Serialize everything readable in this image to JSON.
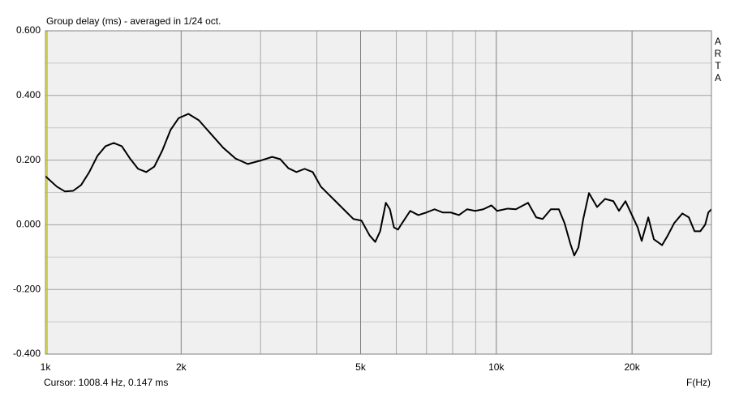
{
  "chart_data": {
    "type": "line",
    "title": "Group delay (ms) - averaged in 1/24 oct.",
    "side_label": "ARTA",
    "x_label": "F(Hz)",
    "cursor": {
      "label": "Cursor: 1008.4 Hz, 0.147 ms",
      "x": 1008.4
    },
    "xscale": "log",
    "grid": true,
    "xlim": [
      1000,
      30000
    ],
    "ylim": [
      -0.4,
      0.6
    ],
    "xticks": [
      {
        "value": 1000,
        "label": "1k"
      },
      {
        "value": 2000,
        "label": "2k"
      },
      {
        "value": 5000,
        "label": "5k"
      },
      {
        "value": 10000,
        "label": "10k"
      },
      {
        "value": 20000,
        "label": "20k"
      }
    ],
    "x_minor_grid": [
      3000,
      4000,
      6000,
      7000,
      8000,
      9000
    ],
    "yticks": [
      {
        "value": 0.6,
        "label": "0.600"
      },
      {
        "value": 0.4,
        "label": "0.400"
      },
      {
        "value": 0.2,
        "label": "0.200"
      },
      {
        "value": 0,
        "label": "0.000"
      },
      {
        "value": -0.2,
        "label": "-0.200"
      },
      {
        "value": -0.4,
        "label": "-0.400"
      }
    ],
    "y_minor_grid": [
      0.5,
      0.3,
      0.1,
      -0.1,
      -0.3
    ],
    "series": [
      {
        "name": "Group delay",
        "color": "#000000",
        "x": [
          1000,
          1060,
          1105,
          1152,
          1200,
          1251,
          1304,
          1359,
          1417,
          1477,
          1540,
          1605,
          1673,
          1744,
          1817,
          1894,
          1975,
          2075,
          2190,
          2332,
          2480,
          2640,
          2810,
          2990,
          3183,
          3317,
          3458,
          3604,
          3757,
          3916,
          4082,
          4255,
          4435,
          4623,
          4819,
          5023,
          5236,
          5389,
          5525,
          5688,
          5808,
          5929,
          6053,
          6180,
          6442,
          6714,
          6998,
          7296,
          7604,
          7927,
          8263,
          8612,
          8979,
          9359,
          9754,
          10040,
          10600,
          11050,
          11760,
          12260,
          12670,
          13210,
          13760,
          14170,
          14590,
          14890,
          15210,
          15590,
          16050,
          16730,
          17430,
          18180,
          18710,
          19340,
          19990,
          20580,
          21010,
          21730,
          22360,
          23320,
          24000,
          24800,
          25860,
          26730,
          27520,
          28340,
          29050,
          29530,
          30000
        ],
        "values": [
          0.15,
          0.118,
          0.103,
          0.105,
          0.123,
          0.163,
          0.213,
          0.243,
          0.253,
          0.243,
          0.205,
          0.173,
          0.163,
          0.18,
          0.23,
          0.293,
          0.33,
          0.343,
          0.323,
          0.28,
          0.238,
          0.205,
          0.188,
          0.198,
          0.21,
          0.203,
          0.175,
          0.163,
          0.173,
          0.163,
          0.118,
          0.093,
          0.068,
          0.043,
          0.018,
          0.013,
          -0.033,
          -0.053,
          -0.02,
          0.068,
          0.048,
          -0.008,
          -0.015,
          0.005,
          0.043,
          0.03,
          0.038,
          0.048,
          0.038,
          0.038,
          0.03,
          0.048,
          0.043,
          0.048,
          0.06,
          0.043,
          0.05,
          0.048,
          0.068,
          0.023,
          0.018,
          0.048,
          0.048,
          0.005,
          -0.058,
          -0.095,
          -0.07,
          0.018,
          0.098,
          0.055,
          0.08,
          0.073,
          0.043,
          0.073,
          0.03,
          -0.008,
          -0.05,
          0.023,
          -0.045,
          -0.063,
          -0.033,
          0.005,
          0.035,
          0.023,
          -0.02,
          -0.02,
          0,
          0.038,
          0.048
        ]
      }
    ]
  }
}
